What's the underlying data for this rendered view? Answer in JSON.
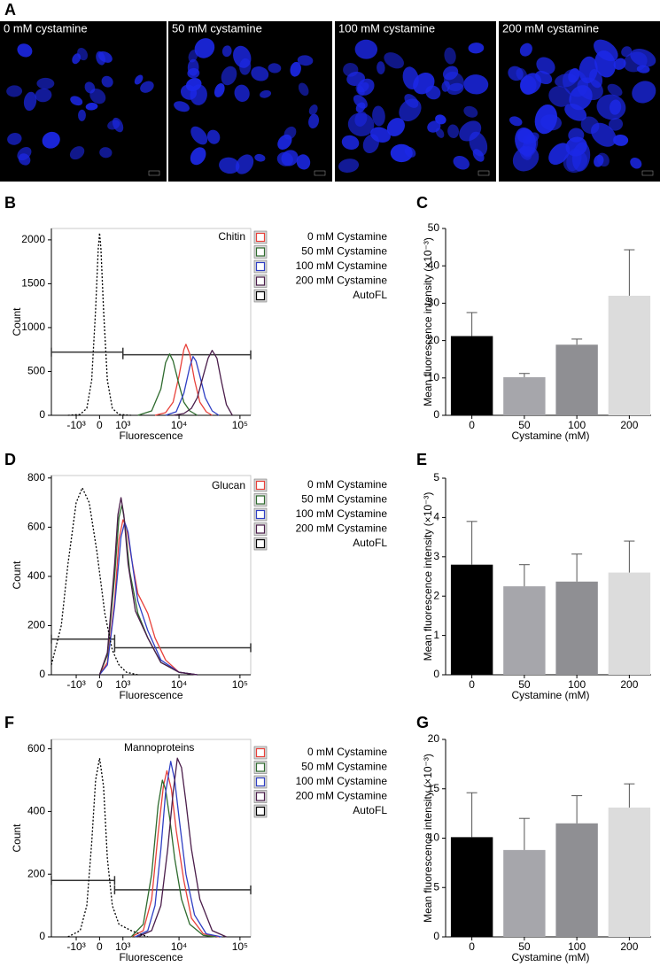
{
  "chart_data": [
    {
      "type": "image",
      "panel": "A",
      "captions": [
        "0 mM cystamine",
        "50 mM cystamine",
        "100 mM cystamine",
        "200 mM cystamine"
      ]
    },
    {
      "type": "line",
      "panel": "B",
      "annotation": "Chitin",
      "xlabel": "Fluorescence",
      "ylabel": "Count",
      "xscale": "biexponential",
      "xlim": [
        -3000,
        150000
      ],
      "xticks": [
        {
          "value": -1000,
          "label": "-10³"
        },
        0,
        {
          "value": 1000,
          "label": "10³"
        },
        {
          "value": 10000,
          "label": "10⁴"
        },
        {
          "value": 100000,
          "label": "10⁵"
        }
      ],
      "ylim": [
        0,
        2130
      ],
      "yticks": [
        0,
        500,
        1000,
        1500,
        2000
      ],
      "gates": [
        {
          "x": [
            -3000,
            1000
          ],
          "y": 720
        },
        {
          "x": [
            1000,
            150000
          ],
          "y": 690
        }
      ],
      "series": [
        {
          "name": "0 mM Cystamine",
          "color": "#e8413a",
          "x": [
            4000,
            6000,
            8000,
            10000,
            12000,
            13000,
            15000,
            18000,
            22000,
            28000,
            35000
          ],
          "values": [
            0,
            30,
            150,
            450,
            750,
            810,
            700,
            400,
            150,
            40,
            0
          ]
        },
        {
          "name": "50 mM Cystamine",
          "color": "#2e6b2e",
          "x": [
            2000,
            3500,
            5000,
            6000,
            7000,
            8000,
            10000,
            12000,
            15000,
            20000
          ],
          "values": [
            0,
            50,
            300,
            600,
            700,
            620,
            350,
            150,
            50,
            0
          ]
        },
        {
          "name": "100 mM Cystamine",
          "color": "#2f3fc4",
          "x": [
            6000,
            9000,
            12000,
            15000,
            17000,
            19000,
            22000,
            27000,
            35000,
            45000
          ],
          "values": [
            0,
            40,
            250,
            550,
            670,
            620,
            450,
            200,
            50,
            0
          ]
        },
        {
          "name": "200 mM Cystamine",
          "color": "#4a1d4a",
          "x": [
            8000,
            12000,
            16000,
            20000,
            25000,
            30000,
            35000,
            42000,
            50000,
            60000,
            75000
          ],
          "values": [
            0,
            20,
            80,
            200,
            450,
            650,
            740,
            650,
            380,
            120,
            0
          ]
        },
        {
          "name": "AutoFL",
          "color": "#000000",
          "line_style": "dotted",
          "x": [
            -1500,
            -800,
            -500,
            -300,
            -150,
            -50,
            0,
            50,
            150,
            300,
            500,
            800,
            1500
          ],
          "values": [
            0,
            10,
            80,
            400,
            1200,
            1900,
            2080,
            1900,
            1200,
            400,
            80,
            10,
            0
          ]
        }
      ]
    },
    {
      "type": "bar",
      "panel": "C",
      "xlabel": "Cystamine (mM)",
      "ylabel": "Mean fluorescence  intensity (×10⁻³)",
      "categories": [
        "0",
        "50",
        "100",
        "200"
      ],
      "values": [
        21.2,
        10.2,
        18.9,
        32
      ],
      "errors": [
        6.3,
        1,
        1.5,
        12.3
      ],
      "colors": [
        "#000000",
        "#a6a6ab",
        "#8f8f93",
        "#dcdcdc"
      ],
      "ylim": [
        0,
        50
      ],
      "yticks": [
        0,
        10,
        20,
        30,
        40,
        50
      ]
    },
    {
      "type": "line",
      "panel": "D",
      "annotation": "Glucan",
      "xlabel": "Fluorescence",
      "ylabel": "Count",
      "xscale": "biexponential",
      "xlim": [
        -3000,
        150000
      ],
      "xticks": [
        {
          "value": -1000,
          "label": "-10³"
        },
        0,
        {
          "value": 1000,
          "label": "10³"
        },
        {
          "value": 10000,
          "label": "10⁴"
        },
        {
          "value": 100000,
          "label": "10⁵"
        }
      ],
      "ylim": [
        0,
        810
      ],
      "yticks": [
        0,
        200,
        400,
        600,
        800
      ],
      "gates": [
        {
          "x": [
            -3000,
            600
          ],
          "y": 145
        },
        {
          "x": [
            600,
            150000
          ],
          "y": 110
        }
      ],
      "series": [
        {
          "name": "0 mM Cystamine",
          "color": "#e8413a",
          "x": [
            0,
            300,
            600,
            800,
            1000,
            1200,
            1500,
            2000,
            3000,
            4000,
            6000,
            10000,
            20000
          ],
          "values": [
            0,
            50,
            300,
            550,
            630,
            600,
            480,
            330,
            250,
            150,
            60,
            10,
            0
          ]
        },
        {
          "name": "50 mM Cystamine",
          "color": "#2e6b2e",
          "x": [
            0,
            300,
            600,
            800,
            950,
            1100,
            1400,
            2000,
            3000,
            5000,
            10000,
            20000
          ],
          "values": [
            0,
            80,
            400,
            640,
            690,
            620,
            420,
            250,
            150,
            50,
            10,
            0
          ]
        },
        {
          "name": "100 mM Cystamine",
          "color": "#2f3fc4",
          "x": [
            0,
            300,
            600,
            900,
            1100,
            1300,
            1600,
            2000,
            3000,
            5000,
            10000,
            20000
          ],
          "values": [
            0,
            40,
            280,
            560,
            620,
            580,
            440,
            300,
            180,
            60,
            10,
            0
          ]
        },
        {
          "name": "200 mM Cystamine",
          "color": "#4a1d4a",
          "x": [
            0,
            300,
            600,
            750,
            900,
            1050,
            1300,
            1800,
            3000,
            5000,
            10000,
            20000
          ],
          "values": [
            0,
            90,
            450,
            650,
            720,
            650,
            450,
            260,
            150,
            50,
            10,
            0
          ]
        },
        {
          "name": "AutoFL",
          "color": "#000000",
          "line_style": "dotted",
          "x": [
            -3000,
            -2000,
            -1500,
            -1000,
            -700,
            -400,
            -100,
            200,
            500,
            800,
            1200,
            2000
          ],
          "values": [
            40,
            200,
            450,
            700,
            760,
            700,
            500,
            250,
            100,
            40,
            10,
            0
          ]
        }
      ]
    },
    {
      "type": "bar",
      "panel": "E",
      "xlabel": "Cystamine (mM)",
      "ylabel": "Mean fluorescence  intensity (×10⁻³)",
      "categories": [
        "0",
        "50",
        "100",
        "200"
      ],
      "values": [
        2.8,
        2.25,
        2.37,
        2.6
      ],
      "errors": [
        1.1,
        0.55,
        0.7,
        0.8
      ],
      "colors": [
        "#000000",
        "#a6a6ab",
        "#8f8f93",
        "#dcdcdc"
      ],
      "ylim": [
        0,
        5
      ],
      "yticks": [
        0,
        1,
        2,
        3,
        4,
        5
      ]
    },
    {
      "type": "line",
      "panel": "F",
      "annotation": "Mannoproteins",
      "xlabel": "Fluorescence",
      "ylabel": "Count",
      "xscale": "biexponential",
      "xlim": [
        -3000,
        150000
      ],
      "xticks": [
        {
          "value": -1000,
          "label": "-10³"
        },
        0,
        {
          "value": 1000,
          "label": "10³"
        },
        {
          "value": 10000,
          "label": "10⁴"
        },
        {
          "value": 100000,
          "label": "10⁵"
        }
      ],
      "ylim": [
        0,
        630
      ],
      "yticks": [
        0,
        200,
        400,
        600
      ],
      "gates": [
        {
          "x": [
            -3000,
            600
          ],
          "y": 180
        },
        {
          "x": [
            600,
            150000
          ],
          "y": 150
        }
      ],
      "series": [
        {
          "name": "0 mM Cystamine",
          "color": "#e8413a",
          "x": [
            1500,
            2500,
            3500,
            4500,
            5500,
            6300,
            7500,
            9000,
            12000,
            16000,
            25000,
            45000
          ],
          "values": [
            0,
            20,
            120,
            330,
            480,
            530,
            470,
            340,
            180,
            60,
            10,
            0
          ]
        },
        {
          "name": "50 mM Cystamine",
          "color": "#2e6b2e",
          "x": [
            1500,
            2500,
            3500,
            4500,
            5300,
            6000,
            7000,
            8500,
            11000,
            15000,
            25000,
            40000
          ],
          "values": [
            0,
            40,
            200,
            420,
            500,
            470,
            380,
            250,
            120,
            40,
            5,
            0
          ]
        },
        {
          "name": "100 mM Cystamine",
          "color": "#2f3fc4",
          "x": [
            1800,
            3000,
            4000,
            5000,
            6000,
            7300,
            8500,
            10000,
            13000,
            18000,
            28000,
            50000
          ],
          "values": [
            0,
            20,
            100,
            280,
            460,
            560,
            500,
            380,
            200,
            70,
            10,
            0
          ]
        },
        {
          "name": "200 mM Cystamine",
          "color": "#4a1d4a",
          "x": [
            2000,
            3500,
            5000,
            6500,
            8000,
            9400,
            11000,
            13000,
            16000,
            22000,
            35000,
            60000
          ],
          "values": [
            0,
            20,
            100,
            280,
            460,
            570,
            540,
            430,
            280,
            120,
            20,
            0
          ]
        },
        {
          "name": "AutoFL",
          "color": "#000000",
          "line_style": "dotted",
          "x": [
            -1500,
            -800,
            -500,
            -300,
            -150,
            0,
            150,
            300,
            500,
            800,
            1500,
            3000
          ],
          "values": [
            0,
            20,
            100,
            300,
            500,
            570,
            480,
            250,
            100,
            40,
            20,
            0
          ]
        }
      ]
    },
    {
      "type": "bar",
      "panel": "G",
      "xlabel": "Cystamine (mM)",
      "ylabel": "Mean fluorescence  intensity (×10⁻³)",
      "categories": [
        "0",
        "50",
        "100",
        "200"
      ],
      "values": [
        10.1,
        8.8,
        11.5,
        13.1
      ],
      "errors": [
        4.5,
        3.2,
        2.8,
        2.4
      ],
      "colors": [
        "#000000",
        "#a6a6ab",
        "#8f8f93",
        "#dcdcdc"
      ],
      "ylim": [
        0,
        20
      ],
      "yticks": [
        0,
        5,
        10,
        15,
        20
      ]
    }
  ]
}
